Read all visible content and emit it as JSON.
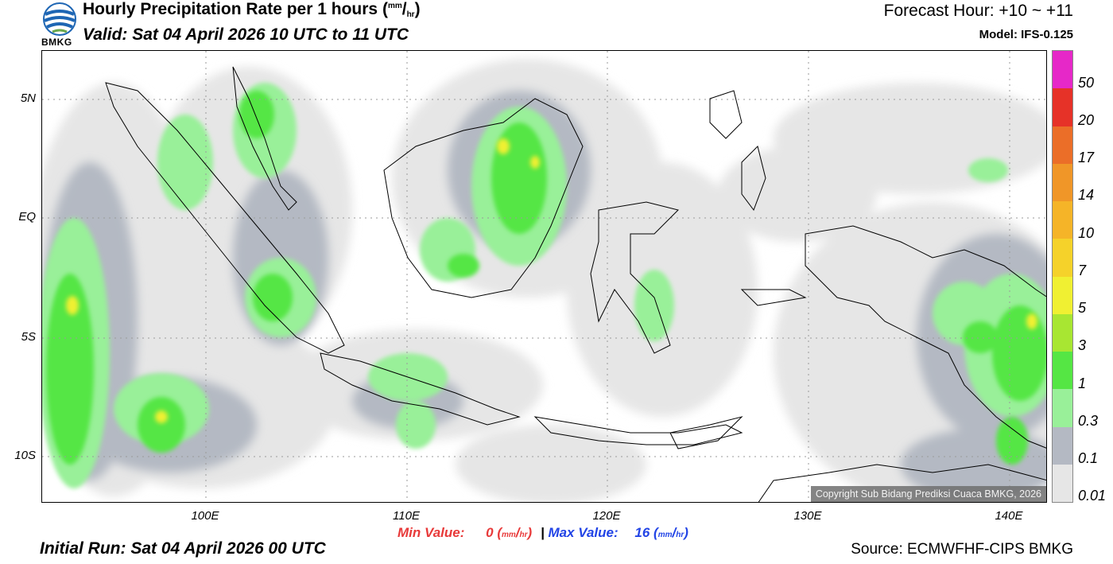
{
  "header": {
    "logo_text": "BMKG",
    "title_main": "Hourly Precipitation Rate per 1 hours",
    "title_unit_num": "mm",
    "title_unit_den": "hr",
    "valid": "Valid: Sat 04 April 2026 10 UTC to 11 UTC",
    "forecast_hour": "Forecast Hour: +10 ~ +11",
    "model": "Model: IFS-0.125"
  },
  "map": {
    "lat_labels": [
      "5N",
      "EQ",
      "5S",
      "10S"
    ],
    "lon_labels": [
      "100E",
      "110E",
      "120E",
      "130E",
      "140E"
    ],
    "copyright": "Copyright Sub Bidang Prediksi Cuaca BMKG, 2026"
  },
  "colorbar": {
    "levels": [
      "0.01",
      "0.1",
      "0.3",
      "1",
      "3",
      "5",
      "7",
      "10",
      "14",
      "17",
      "20",
      "50"
    ],
    "colors": [
      "#e6e6e6",
      "#b4b9c3",
      "#99f099",
      "#55e644",
      "#a8e632",
      "#f0f032",
      "#f5d22a",
      "#f5b428",
      "#f09628",
      "#eb6e28",
      "#e63228",
      "#e628c8"
    ]
  },
  "footer": {
    "min_label": "Min Value:",
    "min_value": "0",
    "separator": "|",
    "max_label": "Max Value:",
    "max_value": "16",
    "unit_num": "mm",
    "unit_den": "hr",
    "initial_run": "Initial Run: Sat 04 April 2026 00 UTC",
    "source": "Source: ECMWFHF-CIPS BMKG"
  }
}
